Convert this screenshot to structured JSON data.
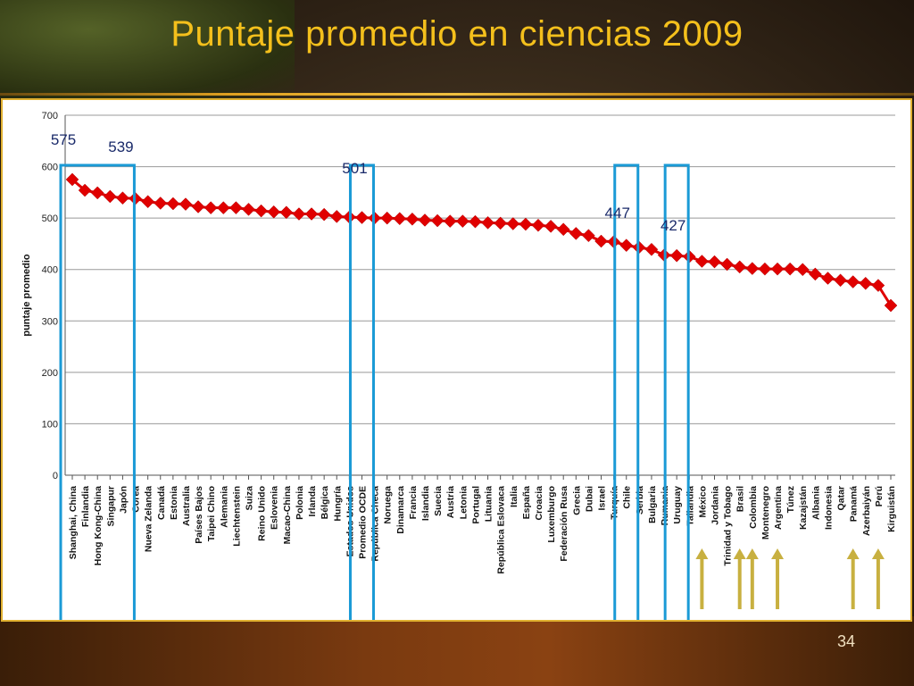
{
  "slide": {
    "title": "Puntaje promedio en ciencias 2009",
    "page_number": "34"
  },
  "colors": {
    "title": "#f4c01c",
    "series": "#e00000",
    "highlight_box": "#1a9ad6",
    "arrow": "#c8b040"
  },
  "annotations": {
    "labels": [
      "575",
      "539",
      "501",
      "447",
      "427"
    ],
    "highlight_groups": [
      {
        "label": "575",
        "from": "Shanghai, China",
        "to": "Shanghai, China"
      },
      {
        "label": "539",
        "from": "Finlandia",
        "to": "Japón"
      },
      {
        "label": "501",
        "from": "Promedio OCDE",
        "to": "Promedio OCDE"
      },
      {
        "label": "447",
        "from": "Chile",
        "to": "Chile"
      },
      {
        "label": "427",
        "from": "Uruguay",
        "to": "Uruguay"
      }
    ],
    "arrow_countries": [
      "México",
      "Brasil",
      "Colombia",
      "Argentina",
      "Panamá",
      "Perú"
    ]
  },
  "chart_data": {
    "type": "line",
    "title": "",
    "xlabel": "",
    "ylabel": "puntaje promedio",
    "ylim": [
      0,
      700
    ],
    "yticks": [
      0,
      100,
      200,
      300,
      400,
      500,
      600,
      700
    ],
    "grid": true,
    "legend": "none",
    "marker": "diamond",
    "categories": [
      "Shanghai, China",
      "Finlandia",
      "Hong Kong-China",
      "Singapur",
      "Japón",
      "Corea",
      "Nueva Zelanda",
      "Canadá",
      "Estonia",
      "Australia",
      "Países Bajos",
      "Taipei Chino",
      "Alemania",
      "Liechtenstein",
      "Suiza",
      "Reino Unido",
      "Eslovenia",
      "Macao-China",
      "Polonia",
      "Irlanda",
      "Bélgica",
      "Hungría",
      "Estados Unidos",
      "Promedio OCDE",
      "República Checa",
      "Noruega",
      "Dinamarca",
      "Francia",
      "Islandia",
      "Suecia",
      "Austria",
      "Letonia",
      "Portugal",
      "Lituania",
      "República Eslovaca",
      "Italia",
      "España",
      "Croacia",
      "Luxemburgo",
      "Federación Rusa",
      "Grecia",
      "Dubai",
      "Israel",
      "Turquía",
      "Chile",
      "Serbia",
      "Bulgaria",
      "Rumania",
      "Uruguay",
      "Tailandia",
      "México",
      "Jordania",
      "Trinidad y Tobago",
      "Brasil",
      "Colombia",
      "Montenegro",
      "Argentina",
      "Túnez",
      "Kazajstán",
      "Albania",
      "Indonesia",
      "Qatar",
      "Panamá",
      "Azerbaiyán",
      "Perú",
      "Kirguistán"
    ],
    "values": [
      575,
      554,
      549,
      542,
      539,
      538,
      532,
      529,
      528,
      527,
      522,
      520,
      520,
      520,
      517,
      514,
      512,
      511,
      508,
      508,
      507,
      503,
      502,
      501,
      500,
      500,
      499,
      498,
      496,
      495,
      494,
      494,
      493,
      491,
      490,
      489,
      488,
      486,
      484,
      478,
      470,
      466,
      455,
      454,
      447,
      443,
      439,
      428,
      427,
      425,
      416,
      415,
      410,
      405,
      402,
      401,
      401,
      401,
      400,
      391,
      383,
      379,
      376,
      373,
      369,
      330
    ]
  }
}
